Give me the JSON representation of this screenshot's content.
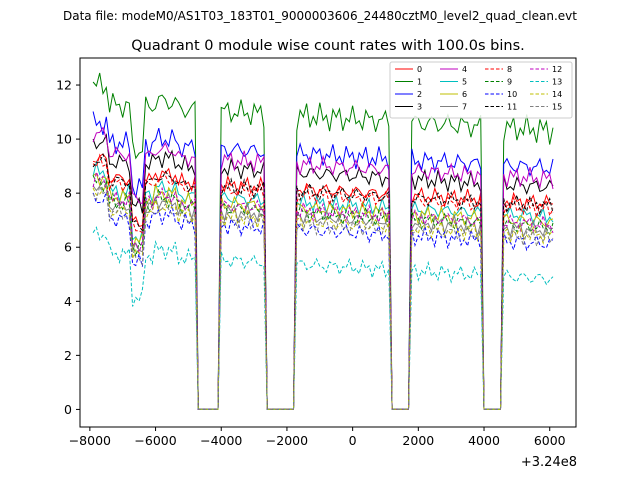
{
  "suptitle": "Data file: modeM0/AS1T03_183T01_9000003606_24480cztM0_level2_quad_clean.evt",
  "chart_data": {
    "type": "line",
    "title": "Quadrant 0 module wise count rates with 100.0s bins.",
    "xlabel": "",
    "ylabel": "",
    "x_offset_label": "+3.24e8",
    "xlim": [
      -8300,
      6800
    ],
    "ylim": [
      -0.65,
      13.0
    ],
    "xticks": [
      -8000,
      -6000,
      -4000,
      -2000,
      0,
      2000,
      4000,
      6000
    ],
    "yticks": [
      0,
      2,
      4,
      6,
      8,
      10,
      12
    ],
    "legend_position": "top-right",
    "x_start": -7900,
    "bin_seconds": 100,
    "gaps": [
      [
        -4700,
        -4100
      ],
      [
        -2600,
        -1800
      ],
      [
        1200,
        1700
      ],
      [
        4000,
        4500
      ]
    ],
    "series": [
      {
        "name": "0",
        "color": "#ff0000",
        "dash": "solid",
        "level": 8.6,
        "amp": 0.35
      },
      {
        "name": "1",
        "color": "#008000",
        "dash": "solid",
        "level": 11.3,
        "amp": 0.55
      },
      {
        "name": "2",
        "color": "#0000ff",
        "dash": "solid",
        "level": 9.9,
        "amp": 0.45
      },
      {
        "name": "3",
        "color": "#000000",
        "dash": "solid",
        "level": 9.2,
        "amp": 0.4
      },
      {
        "name": "4",
        "color": "#bf00bf",
        "dash": "solid",
        "level": 9.5,
        "amp": 0.4
      },
      {
        "name": "5",
        "color": "#00bfbf",
        "dash": "solid",
        "level": 8.1,
        "amp": 0.35
      },
      {
        "name": "6",
        "color": "#bfbf00",
        "dash": "solid",
        "level": 7.9,
        "amp": 0.35
      },
      {
        "name": "7",
        "color": "#808080",
        "dash": "solid",
        "level": 7.6,
        "amp": 0.35
      },
      {
        "name": "8",
        "color": "#ff0000",
        "dash": "dashed",
        "level": 8.4,
        "amp": 0.35
      },
      {
        "name": "9",
        "color": "#008000",
        "dash": "dashed",
        "level": 7.7,
        "amp": 0.35
      },
      {
        "name": "10",
        "color": "#0000ff",
        "dash": "dashed",
        "level": 7.1,
        "amp": 0.4
      },
      {
        "name": "11",
        "color": "#000000",
        "dash": "dashed",
        "level": 8.5,
        "amp": 0.35
      },
      {
        "name": "12",
        "color": "#bf00bf",
        "dash": "dashed",
        "level": 7.8,
        "amp": 0.35
      },
      {
        "name": "13",
        "color": "#00bfbf",
        "dash": "dashed",
        "level": 5.8,
        "amp": 0.35
      },
      {
        "name": "14",
        "color": "#bfbf00",
        "dash": "dashed",
        "level": 7.4,
        "amp": 0.35
      },
      {
        "name": "15",
        "color": "#808080",
        "dash": "dashed",
        "level": 7.3,
        "amp": 0.35
      }
    ]
  }
}
